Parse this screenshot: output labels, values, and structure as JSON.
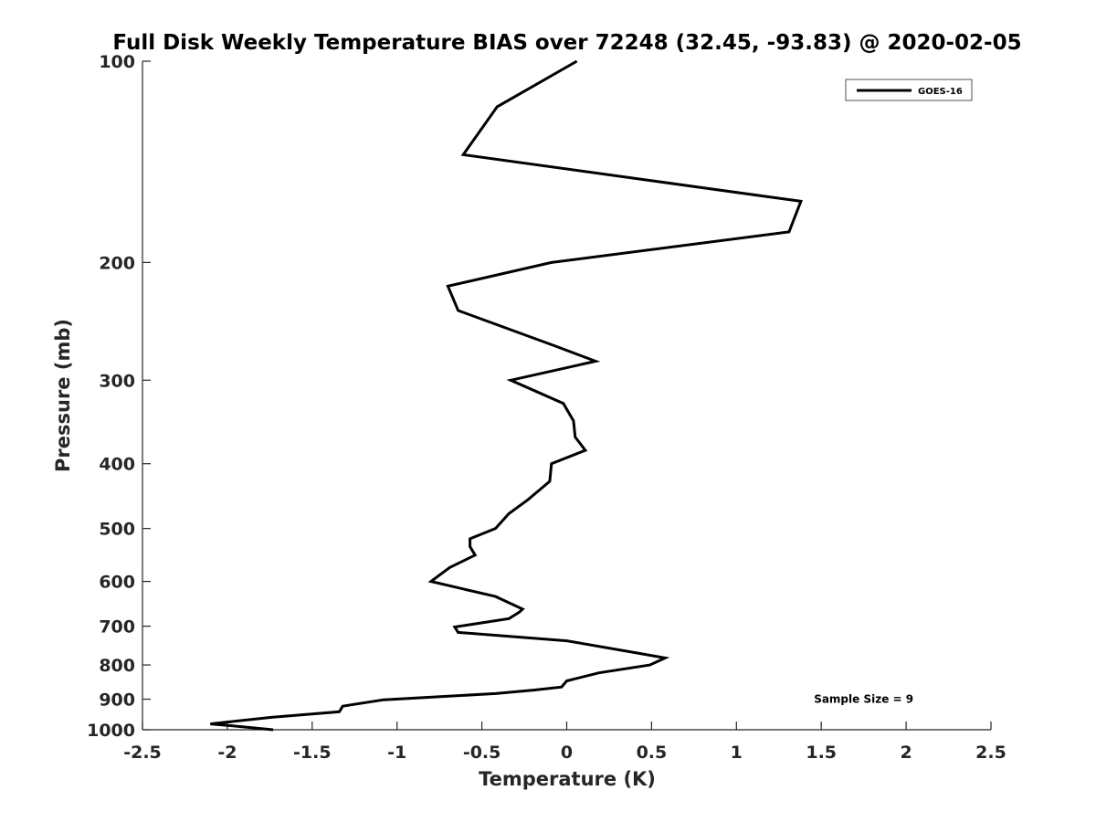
{
  "chart_data": {
    "type": "line",
    "title": "Full Disk Weekly Temperature BIAS over 72248 (32.45, -93.83) @ 2020-02-05",
    "xlabel": "Temperature (K)",
    "ylabel": "Pressure (mb)",
    "xlim": [
      -2.5,
      2.5
    ],
    "ylim": [
      1000,
      100
    ],
    "y_scale": "log",
    "x_ticks": [
      "-2.5",
      "-2",
      "-1.5",
      "-1",
      "-0.5",
      "0",
      "0.5",
      "1",
      "1.5",
      "2",
      "2.5"
    ],
    "y_ticks": [
      "100",
      "200",
      "300",
      "400",
      "500",
      "600",
      "700",
      "800",
      "900",
      "1000"
    ],
    "grid": false,
    "legend_position": "top-right",
    "series": [
      {
        "name": "GOES-16",
        "color": "#000000",
        "points": [
          {
            "x": 0.06,
            "p": 100
          },
          {
            "x": -0.41,
            "p": 117
          },
          {
            "x": -0.61,
            "p": 138
          },
          {
            "x": 1.38,
            "p": 162
          },
          {
            "x": 1.31,
            "p": 180
          },
          {
            "x": -0.09,
            "p": 200
          },
          {
            "x": -0.7,
            "p": 217
          },
          {
            "x": -0.64,
            "p": 236
          },
          {
            "x": -0.08,
            "p": 266
          },
          {
            "x": 0.17,
            "p": 281
          },
          {
            "x": -0.33,
            "p": 300
          },
          {
            "x": -0.02,
            "p": 325
          },
          {
            "x": 0.04,
            "p": 345
          },
          {
            "x": 0.05,
            "p": 365
          },
          {
            "x": 0.11,
            "p": 382
          },
          {
            "x": -0.09,
            "p": 400
          },
          {
            "x": -0.1,
            "p": 425
          },
          {
            "x": -0.23,
            "p": 453
          },
          {
            "x": -0.34,
            "p": 475
          },
          {
            "x": -0.42,
            "p": 500
          },
          {
            "x": -0.57,
            "p": 518
          },
          {
            "x": -0.57,
            "p": 532
          },
          {
            "x": -0.54,
            "p": 548
          },
          {
            "x": -0.69,
            "p": 572
          },
          {
            "x": -0.8,
            "p": 600
          },
          {
            "x": -0.42,
            "p": 632
          },
          {
            "x": -0.26,
            "p": 660
          },
          {
            "x": -0.28,
            "p": 667
          },
          {
            "x": -0.34,
            "p": 682
          },
          {
            "x": -0.66,
            "p": 702
          },
          {
            "x": -0.64,
            "p": 715
          },
          {
            "x": 0.0,
            "p": 736
          },
          {
            "x": 0.42,
            "p": 768
          },
          {
            "x": 0.58,
            "p": 781
          },
          {
            "x": 0.49,
            "p": 800
          },
          {
            "x": 0.19,
            "p": 822
          },
          {
            "x": 0.0,
            "p": 845
          },
          {
            "x": -0.03,
            "p": 863
          },
          {
            "x": -0.19,
            "p": 872
          },
          {
            "x": -0.42,
            "p": 883
          },
          {
            "x": -1.08,
            "p": 902
          },
          {
            "x": -1.32,
            "p": 922
          },
          {
            "x": -1.34,
            "p": 940
          },
          {
            "x": -1.74,
            "p": 958
          },
          {
            "x": -2.1,
            "p": 980
          },
          {
            "x": -1.94,
            "p": 988
          },
          {
            "x": -1.73,
            "p": 1000
          }
        ]
      }
    ],
    "annotations": [
      {
        "text": "Sample Size = 9",
        "x": 1.5,
        "p": 900
      }
    ]
  }
}
